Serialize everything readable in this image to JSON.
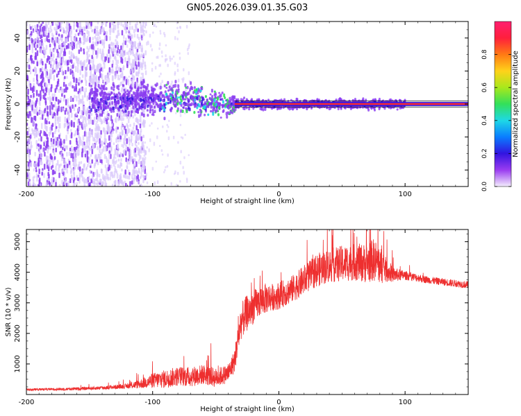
{
  "figure": {
    "title": "GN05.2026.039.01.35.G03"
  },
  "chart_data": [
    {
      "type": "heatmap",
      "title": "GN05.2026.039.01.35.G03",
      "xlabel": "Height of straight line (km)",
      "ylabel": "Frequency (Hz)",
      "xlim": [
        -200,
        150
      ],
      "ylim": [
        -50,
        50
      ],
      "xticks": [
        -200,
        -100,
        0,
        100
      ],
      "yticks": [
        -40,
        -20,
        0,
        20,
        40
      ],
      "colorbar": {
        "label": "Normalized spectral amplitude",
        "range": [
          0,
          1
        ],
        "ticks": [
          0.0,
          0.2,
          0.4,
          0.6,
          0.8
        ],
        "tick_labels": [
          "0.0",
          "0.2",
          "0.4",
          "0.6",
          "0.8"
        ],
        "colormap": [
          "#f4eefd",
          "#9a3cf0",
          "#3214e0",
          "#0a7dff",
          "#1ed8e6",
          "#33e05a",
          "#a8e81c",
          "#ffd21a",
          "#ff7a14",
          "#ff1f3c",
          "#ff1f70"
        ]
      },
      "band_center_hz": 0,
      "noise_end_km": -120,
      "strong_signal_start_km": -35,
      "colors": {
        "noise": "#8a3cf0",
        "faint": "#d9c8fb",
        "strong": "#ff2c2c",
        "green": "#33e05a",
        "cyan": "#1ed8e6"
      }
    },
    {
      "type": "line",
      "xlabel": "Height of straight line (km)",
      "ylabel": "SNR (10 * v/v)",
      "xlim": [
        -200,
        150
      ],
      "ylim": [
        0,
        5400
      ],
      "xticks": [
        -200,
        -100,
        0,
        100
      ],
      "yticks": [
        1000,
        2000,
        3000,
        4000,
        5000
      ],
      "color": "#ee2f2f",
      "series": [
        {
          "name": "SNR",
          "x": [
            -200,
            -180,
            -160,
            -140,
            -120,
            -110,
            -100,
            -90,
            -80,
            -70,
            -60,
            -50,
            -40,
            -35,
            -30,
            -25,
            -20,
            -15,
            -10,
            -5,
            0,
            5,
            10,
            15,
            20,
            25,
            30,
            40,
            50,
            60,
            70,
            75,
            80,
            85,
            90,
            100,
            110,
            120,
            130,
            140,
            150
          ],
          "y": [
            150,
            160,
            170,
            200,
            250,
            300,
            380,
            420,
            500,
            480,
            560,
            450,
            600,
            1000,
            2200,
            2500,
            2700,
            2900,
            3000,
            3050,
            3100,
            3200,
            3300,
            3450,
            3600,
            3750,
            3900,
            4050,
            4100,
            4150,
            4100,
            4200,
            4050,
            3950,
            3850,
            3850,
            3780,
            3700,
            3650,
            3600,
            3550
          ],
          "noise_amplitude": [
            40,
            40,
            50,
            60,
            80,
            150,
            250,
            300,
            320,
            330,
            330,
            320,
            300,
            400,
            600,
            600,
            550,
            500,
            500,
            450,
            450,
            450,
            450,
            450,
            500,
            500,
            550,
            550,
            600,
            600,
            650,
            700,
            650,
            400,
            250,
            150,
            130,
            120,
            120,
            120,
            120
          ]
        }
      ]
    }
  ]
}
